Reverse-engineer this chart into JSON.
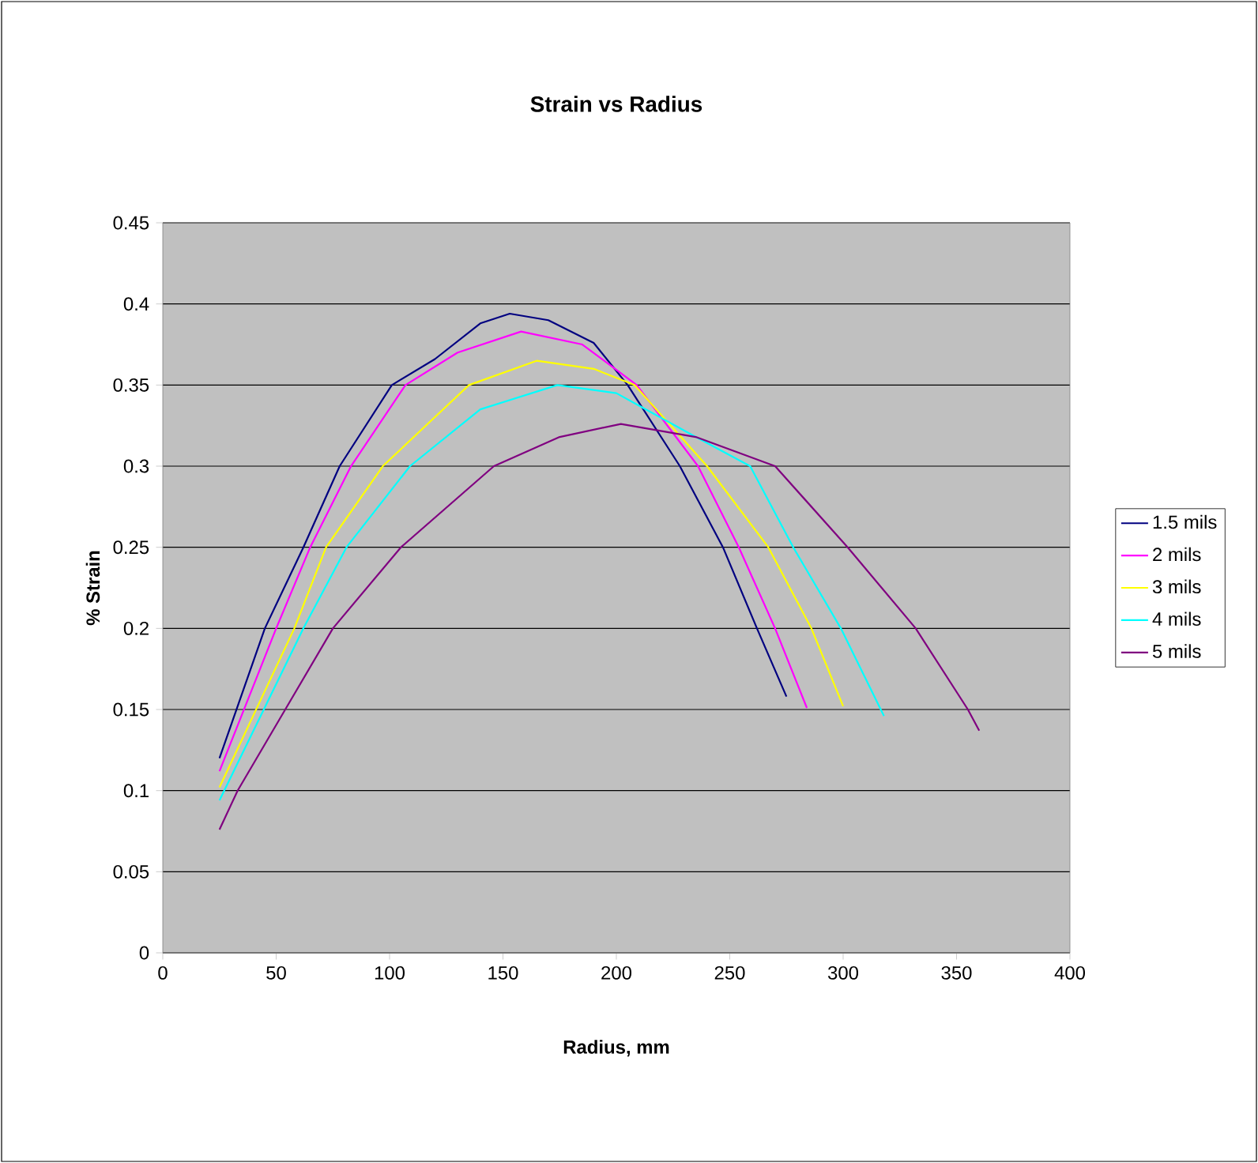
{
  "chart_data": {
    "type": "line",
    "title": "Strain vs Radius",
    "xlabel": "Radius, mm",
    "ylabel": "% Strain",
    "xlim": [
      0,
      400
    ],
    "xticks": [
      0,
      50,
      100,
      150,
      200,
      250,
      300,
      350,
      400
    ],
    "ylim": [
      0,
      0.45
    ],
    "yticks": [
      0,
      0.05,
      0.1,
      0.15,
      0.2,
      0.25,
      0.3,
      0.35,
      0.4,
      0.45
    ],
    "grid": "y",
    "legend": "right",
    "marker": "none",
    "line_style": "solid",
    "series": [
      {
        "name": "1.5 mils",
        "color": "#000080",
        "x": [
          25,
          45,
          62,
          78,
          101,
          120,
          140,
          153,
          170,
          190,
          205,
          228,
          247,
          262,
          275
        ],
        "values": [
          0.12,
          0.2,
          0.25,
          0.3,
          0.35,
          0.366,
          0.388,
          0.394,
          0.39,
          0.376,
          0.35,
          0.3,
          0.25,
          0.2,
          0.158
        ]
      },
      {
        "name": "2 mils",
        "color": "#ff00ff",
        "x": [
          25,
          50,
          65,
          83,
          107,
          130,
          158,
          185,
          209,
          236,
          254,
          270,
          284
        ],
        "values": [
          0.112,
          0.2,
          0.25,
          0.3,
          0.35,
          0.37,
          0.383,
          0.375,
          0.35,
          0.3,
          0.25,
          0.2,
          0.151
        ]
      },
      {
        "name": "3 mils",
        "color": "#ffff00",
        "x": [
          25,
          58,
          72,
          97,
          135,
          165,
          190,
          208,
          240,
          267,
          286,
          300
        ],
        "values": [
          0.102,
          0.2,
          0.25,
          0.3,
          0.35,
          0.365,
          0.36,
          0.35,
          0.3,
          0.25,
          0.2,
          0.152
        ]
      },
      {
        "name": "4 mils",
        "color": "#00ffff",
        "x": [
          25,
          62,
          81,
          109,
          140,
          174,
          200,
          235,
          259,
          278,
          299,
          318
        ],
        "values": [
          0.094,
          0.2,
          0.25,
          0.3,
          0.335,
          0.35,
          0.345,
          0.318,
          0.3,
          0.25,
          0.2,
          0.146
        ]
      },
      {
        "name": "5 mils",
        "color": "#800080",
        "x": [
          25,
          33,
          54,
          75,
          105,
          146,
          175,
          202,
          235,
          270,
          302,
          332,
          355,
          360
        ],
        "values": [
          0.076,
          0.1,
          0.15,
          0.2,
          0.25,
          0.3,
          0.318,
          0.326,
          0.318,
          0.3,
          0.25,
          0.2,
          0.15,
          0.137
        ]
      }
    ]
  }
}
